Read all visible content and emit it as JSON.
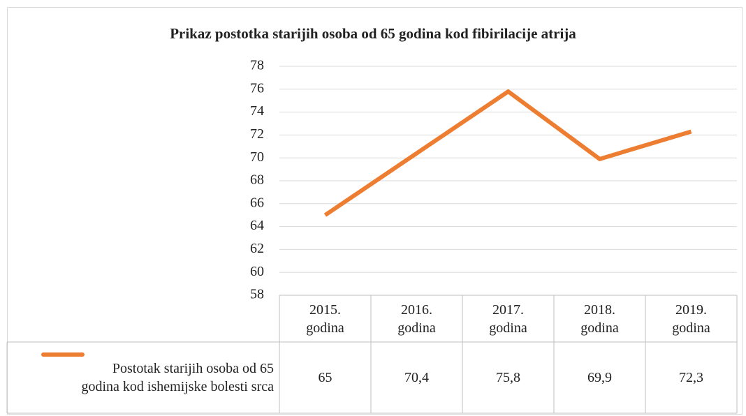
{
  "chart_data": {
    "type": "line",
    "title": "Prikaz postotka starijih osoba od 65 godina kod fibirilacije atrija",
    "categories": [
      "2015. godina",
      "2016. godina",
      "2017. godina",
      "2018. godina",
      "2019. godina"
    ],
    "series": [
      {
        "name": "Postotak starijih osoba od 65 godina kod ishemijske bolesti srca",
        "color": "#ed7d31",
        "values": [
          65,
          70.4,
          75.8,
          69.9,
          72.3
        ],
        "value_labels": [
          "65",
          "70,4",
          "75,8",
          "69,9",
          "72,3"
        ]
      }
    ],
    "ylim": [
      58,
      78
    ],
    "yticks": [
      58,
      60,
      62,
      64,
      66,
      68,
      70,
      72,
      74,
      76,
      78
    ],
    "grid": true
  }
}
